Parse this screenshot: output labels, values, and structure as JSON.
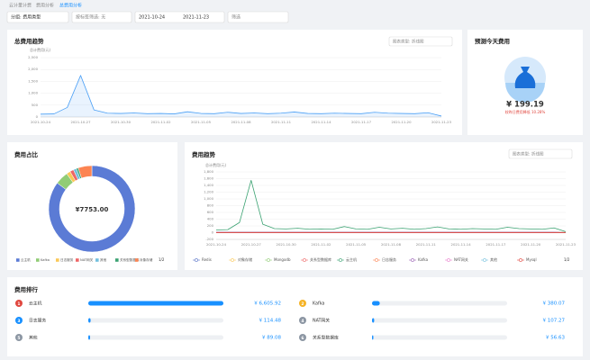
{
  "breadcrumb": [
    "云计量计费",
    "费用分析",
    "总费用分析"
  ],
  "filters": [
    "分组: 费用类型",
    "按标签筛选: 无",
    "2021-10-24",
    "2021-11-23",
    "筛选"
  ],
  "total_trend": {
    "type": "line",
    "title": "总费用趋势",
    "selector": "图表类型: 折线图",
    "y_label": "总计费用(元)",
    "x": [
      "2021-10-24",
      "2021-10-25",
      "2021-10-26",
      "2021-10-27",
      "2021-10-28",
      "2021-10-29",
      "2021-10-30",
      "2021-10-31",
      "2021-11-01",
      "2021-11-02",
      "2021-11-03",
      "2021-11-04",
      "2021-11-05",
      "2021-11-06",
      "2021-11-07",
      "2021-11-08",
      "2021-11-09",
      "2021-11-10",
      "2021-11-11",
      "2021-11-12",
      "2021-11-13",
      "2021-11-14",
      "2021-11-15",
      "2021-11-16",
      "2021-11-17",
      "2021-11-18",
      "2021-11-19",
      "2021-11-20",
      "2021-11-21",
      "2021-11-22",
      "2021-11-23"
    ],
    "xticks": [
      "2021-10-24",
      "2021-10-27",
      "2021-10-30",
      "2021-11-02",
      "2021-11-05",
      "2021-11-08",
      "2021-11-11",
      "2021-11-14",
      "2021-11-17",
      "2021-11-20",
      "2021-11-23"
    ],
    "values": [
      120,
      130,
      400,
      1750,
      300,
      160,
      150,
      170,
      140,
      150,
      130,
      220,
      150,
      140,
      200,
      150,
      170,
      140,
      160,
      210,
      150,
      140,
      160,
      150,
      140,
      200,
      160,
      150,
      140,
      180,
      40
    ],
    "color": "#4a9ff5",
    "ylim": [
      0,
      2500
    ],
    "yticks": [
      0,
      500,
      {
        "value": 1000,
        "label": "1,000"
      },
      {
        "value": 1500,
        "label": "1,500"
      },
      {
        "value": 2000,
        "label": "2,000"
      },
      {
        "value": 2500,
        "label": "2,500"
      }
    ]
  },
  "forecast": {
    "title": "预测今天费用",
    "amount": "¥ 199.19",
    "change": "较昨日费用降低 10.28%"
  },
  "share": {
    "type": "pie",
    "title": "费用占比",
    "center": "¥7753.00",
    "categories": [
      "云主机",
      "Kafka",
      "日志服务",
      "NAT网关",
      "其他",
      "关系型数据库",
      "对象存储"
    ],
    "values": [
      6605.92,
      380.07,
      114.48,
      107.27,
      89.08,
      56.63,
      399.55
    ],
    "colors": [
      "#5b7bd5",
      "#91cc75",
      "#fac858",
      "#ee6666",
      "#73c0de",
      "#3ba272",
      "#fc8452"
    ],
    "pager": "1/2"
  },
  "trend": {
    "type": "line",
    "title": "费用趋势",
    "selector": "图表类型: 折线图",
    "y_label": "总计费用(元)",
    "x": [
      "2021-10-24",
      "2021-10-25",
      "2021-10-26",
      "2021-10-27",
      "2021-10-28",
      "2021-10-29",
      "2021-10-30",
      "2021-10-31",
      "2021-11-01",
      "2021-11-02",
      "2021-11-03",
      "2021-11-04",
      "2021-11-05",
      "2021-11-06",
      "2021-11-07",
      "2021-11-08",
      "2021-11-09",
      "2021-11-10",
      "2021-11-11",
      "2021-11-12",
      "2021-11-13",
      "2021-11-14",
      "2021-11-15",
      "2021-11-16",
      "2021-11-17",
      "2021-11-18",
      "2021-11-19",
      "2021-11-20",
      "2021-11-21",
      "2021-11-22",
      "2021-11-23"
    ],
    "xticks": [
      "2021-10-24",
      "2021-10-27",
      "2021-10-30",
      "2021-11-02",
      "2021-11-05",
      "2021-11-08",
      "2021-11-11",
      "2021-11-14",
      "2021-11-17",
      "2021-11-20",
      "2021-11-23"
    ],
    "series": [
      {
        "name": "Redis",
        "color": "#5470c6",
        "values": [
          1,
          1,
          1,
          1,
          1,
          1,
          1,
          1,
          1,
          1,
          1,
          1,
          1,
          1,
          1,
          1,
          1,
          1,
          1,
          1,
          1,
          1,
          1,
          1,
          1,
          1,
          1,
          1,
          1,
          1,
          1
        ]
      },
      {
        "name": "对象存储",
        "color": "#fac858",
        "values": [
          13,
          13,
          13,
          13,
          13,
          13,
          13,
          13,
          13,
          13,
          13,
          13,
          13,
          13,
          13,
          13,
          13,
          13,
          13,
          13,
          13,
          13,
          13,
          13,
          13,
          13,
          13,
          13,
          13,
          13,
          10
        ]
      },
      {
        "name": "Mongodb",
        "color": "#91cc75",
        "values": [
          1,
          1,
          1,
          1,
          1,
          1,
          1,
          1,
          1,
          1,
          1,
          1,
          1,
          1,
          1,
          1,
          1,
          1,
          1,
          1,
          1,
          1,
          1,
          1,
          1,
          1,
          1,
          1,
          1,
          1,
          1
        ]
      },
      {
        "name": "关系型数据库",
        "color": "#ee6666",
        "values": [
          2,
          2,
          2,
          2,
          2,
          2,
          2,
          2,
          2,
          2,
          2,
          2,
          2,
          2,
          2,
          2,
          2,
          2,
          2,
          2,
          2,
          2,
          2,
          2,
          2,
          2,
          2,
          2,
          2,
          2,
          2
        ]
      },
      {
        "name": "云主机",
        "color": "#3ba272",
        "values": [
          80,
          90,
          300,
          1550,
          250,
          120,
          110,
          130,
          100,
          110,
          100,
          180,
          110,
          100,
          160,
          110,
          130,
          100,
          120,
          170,
          110,
          100,
          120,
          110,
          100,
          160,
          120,
          110,
          100,
          140,
          30
        ]
      },
      {
        "name": "日志服务",
        "color": "#fc8452",
        "values": [
          4,
          4,
          4,
          4,
          4,
          4,
          4,
          4,
          4,
          4,
          4,
          4,
          4,
          4,
          4,
          4,
          4,
          4,
          4,
          4,
          4,
          4,
          4,
          4,
          4,
          4,
          4,
          4,
          4,
          4,
          3
        ]
      },
      {
        "name": "Kafka",
        "color": "#9a60b4",
        "values": [
          12,
          12,
          12,
          12,
          12,
          12,
          12,
          12,
          12,
          12,
          12,
          12,
          12,
          12,
          12,
          12,
          12,
          12,
          12,
          12,
          12,
          12,
          12,
          12,
          12,
          12,
          12,
          12,
          12,
          12,
          5
        ]
      },
      {
        "name": "NAT网关",
        "color": "#ea7ccc",
        "values": [
          3.5,
          3.5,
          3.5,
          3.5,
          3.5,
          3.5,
          3.5,
          3.5,
          3.5,
          3.5,
          3.5,
          3.5,
          3.5,
          3.5,
          3.5,
          3.5,
          3.5,
          3.5,
          3.5,
          3.5,
          3.5,
          3.5,
          3.5,
          3.5,
          3.5,
          3.5,
          3.5,
          3.5,
          3.5,
          3.5,
          3
        ]
      },
      {
        "name": "其他",
        "color": "#73c0de",
        "values": [
          3,
          3,
          3,
          3,
          3,
          3,
          3,
          3,
          3,
          3,
          3,
          3,
          3,
          3,
          3,
          3,
          3,
          3,
          3,
          3,
          3,
          3,
          3,
          3,
          3,
          3,
          3,
          3,
          3,
          3,
          2
        ]
      },
      {
        "name": "Mysql",
        "color": "#e0473f",
        "values": [
          1,
          1,
          1,
          1,
          1,
          1,
          1,
          1,
          1,
          1,
          1,
          1,
          1,
          1,
          1,
          1,
          1,
          1,
          1,
          1,
          1,
          1,
          1,
          1,
          1,
          1,
          1,
          1,
          1,
          1,
          1
        ]
      }
    ],
    "ylim": [
      -200,
      1800
    ],
    "yticks": [
      -200,
      0,
      200,
      400,
      600,
      800,
      {
        "value": 1000,
        "label": "1,000"
      },
      {
        "value": 1200,
        "label": "1,200"
      },
      {
        "value": 1400,
        "label": "1,400"
      },
      {
        "value": 1600,
        "label": "1,600"
      },
      {
        "value": 1800,
        "label": "1,800"
      }
    ],
    "pager": "1/2"
  },
  "ranking": {
    "title": "费用排行",
    "items": [
      {
        "rank": 1,
        "name": "云主机",
        "value": 6605.92,
        "label": "¥ 6,605.92",
        "color": "#e0473f"
      },
      {
        "rank": 2,
        "name": "Kafka",
        "value": 380.07,
        "label": "¥ 380.07",
        "color": "#f5b326"
      },
      {
        "rank": 3,
        "name": "日志服务",
        "value": 114.48,
        "label": "¥ 114.48",
        "color": "#1890ff"
      },
      {
        "rank": 4,
        "name": "NAT网关",
        "value": 107.27,
        "label": "¥ 107.27",
        "color": "#8c96a3"
      },
      {
        "rank": 5,
        "name": "其他",
        "value": 89.08,
        "label": "¥ 89.08",
        "color": "#8c96a3"
      },
      {
        "rank": 6,
        "name": "关系型数据库",
        "value": 56.63,
        "label": "¥ 56.63",
        "color": "#8c96a3"
      }
    ]
  }
}
